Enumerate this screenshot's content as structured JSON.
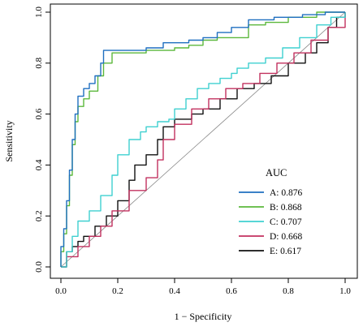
{
  "chart_data": {
    "type": "line",
    "xlabel": "1 − Specificity",
    "ylabel": "Sensitivity",
    "xlim": [
      0,
      1
    ],
    "ylim": [
      0,
      1
    ],
    "x_ticks": [
      "0.0",
      "0.2",
      "0.4",
      "0.6",
      "0.8",
      "1.0"
    ],
    "y_ticks": [
      "0.0",
      "0.2",
      "0.4",
      "0.6",
      "0.8",
      "1.0"
    ],
    "grid": false,
    "diagonal_reference": true,
    "legend": {
      "title": "AUC",
      "placement": "bottom-right"
    },
    "series": [
      {
        "name": "A",
        "auc_label": "A: 0.876",
        "color": "#1f6fc0",
        "points": [
          [
            0,
            0
          ],
          [
            0,
            0.08
          ],
          [
            0.01,
            0.15
          ],
          [
            0.02,
            0.26
          ],
          [
            0.03,
            0.38
          ],
          [
            0.04,
            0.5
          ],
          [
            0.05,
            0.6
          ],
          [
            0.06,
            0.67
          ],
          [
            0.08,
            0.7
          ],
          [
            0.1,
            0.72
          ],
          [
            0.12,
            0.75
          ],
          [
            0.14,
            0.8
          ],
          [
            0.15,
            0.85
          ],
          [
            0.22,
            0.85
          ],
          [
            0.3,
            0.86
          ],
          [
            0.36,
            0.88
          ],
          [
            0.45,
            0.89
          ],
          [
            0.5,
            0.9
          ],
          [
            0.55,
            0.92
          ],
          [
            0.6,
            0.94
          ],
          [
            0.66,
            0.97
          ],
          [
            0.75,
            0.98
          ],
          [
            0.85,
            0.99
          ],
          [
            0.93,
            1.0
          ],
          [
            1,
            1
          ]
        ]
      },
      {
        "name": "B",
        "auc_label": "B: 0.868",
        "color": "#5cb83c",
        "points": [
          [
            0,
            0
          ],
          [
            0,
            0.06
          ],
          [
            0.01,
            0.13
          ],
          [
            0.02,
            0.24
          ],
          [
            0.03,
            0.36
          ],
          [
            0.04,
            0.48
          ],
          [
            0.05,
            0.57
          ],
          [
            0.06,
            0.63
          ],
          [
            0.08,
            0.66
          ],
          [
            0.1,
            0.69
          ],
          [
            0.13,
            0.75
          ],
          [
            0.15,
            0.8
          ],
          [
            0.18,
            0.84
          ],
          [
            0.22,
            0.84
          ],
          [
            0.3,
            0.85
          ],
          [
            0.4,
            0.86
          ],
          [
            0.45,
            0.87
          ],
          [
            0.5,
            0.89
          ],
          [
            0.55,
            0.9
          ],
          [
            0.6,
            0.9
          ],
          [
            0.66,
            0.95
          ],
          [
            0.72,
            0.96
          ],
          [
            0.8,
            0.98
          ],
          [
            0.9,
            1.0
          ],
          [
            1,
            1
          ]
        ]
      },
      {
        "name": "C",
        "auc_label": "C: 0.707",
        "color": "#3fd0d0",
        "points": [
          [
            0,
            0
          ],
          [
            0.02,
            0.06
          ],
          [
            0.04,
            0.12
          ],
          [
            0.06,
            0.18
          ],
          [
            0.1,
            0.22
          ],
          [
            0.14,
            0.28
          ],
          [
            0.18,
            0.36
          ],
          [
            0.2,
            0.44
          ],
          [
            0.24,
            0.5
          ],
          [
            0.28,
            0.53
          ],
          [
            0.3,
            0.55
          ],
          [
            0.34,
            0.57
          ],
          [
            0.38,
            0.58
          ],
          [
            0.4,
            0.62
          ],
          [
            0.44,
            0.66
          ],
          [
            0.48,
            0.7
          ],
          [
            0.52,
            0.72
          ],
          [
            0.56,
            0.74
          ],
          [
            0.6,
            0.76
          ],
          [
            0.62,
            0.78
          ],
          [
            0.66,
            0.8
          ],
          [
            0.72,
            0.82
          ],
          [
            0.78,
            0.86
          ],
          [
            0.84,
            0.9
          ],
          [
            0.9,
            0.95
          ],
          [
            0.95,
            0.98
          ],
          [
            1,
            1
          ]
        ]
      },
      {
        "name": "D",
        "auc_label": "D: 0.668",
        "color": "#c2315f",
        "points": [
          [
            0,
            0
          ],
          [
            0.02,
            0.04
          ],
          [
            0.06,
            0.08
          ],
          [
            0.1,
            0.12
          ],
          [
            0.14,
            0.16
          ],
          [
            0.18,
            0.22
          ],
          [
            0.24,
            0.3
          ],
          [
            0.3,
            0.35
          ],
          [
            0.34,
            0.42
          ],
          [
            0.36,
            0.5
          ],
          [
            0.4,
            0.56
          ],
          [
            0.46,
            0.62
          ],
          [
            0.52,
            0.66
          ],
          [
            0.58,
            0.7
          ],
          [
            0.64,
            0.72
          ],
          [
            0.7,
            0.76
          ],
          [
            0.76,
            0.8
          ],
          [
            0.82,
            0.84
          ],
          [
            0.88,
            0.89
          ],
          [
            0.94,
            0.94
          ],
          [
            1,
            1
          ]
        ]
      },
      {
        "name": "E",
        "auc_label": "E: 0.617",
        "color": "#111111",
        "points": [
          [
            0,
            0
          ],
          [
            0.02,
            0.06
          ],
          [
            0.04,
            0.08
          ],
          [
            0.06,
            0.1
          ],
          [
            0.08,
            0.12
          ],
          [
            0.12,
            0.16
          ],
          [
            0.16,
            0.2
          ],
          [
            0.2,
            0.26
          ],
          [
            0.24,
            0.34
          ],
          [
            0.26,
            0.4
          ],
          [
            0.3,
            0.44
          ],
          [
            0.34,
            0.5
          ],
          [
            0.36,
            0.55
          ],
          [
            0.4,
            0.58
          ],
          [
            0.46,
            0.6
          ],
          [
            0.5,
            0.62
          ],
          [
            0.56,
            0.66
          ],
          [
            0.62,
            0.7
          ],
          [
            0.68,
            0.72
          ],
          [
            0.74,
            0.75
          ],
          [
            0.8,
            0.8
          ],
          [
            0.86,
            0.84
          ],
          [
            0.9,
            0.88
          ],
          [
            0.94,
            0.94
          ],
          [
            0.97,
            0.98
          ],
          [
            1,
            1
          ]
        ]
      }
    ]
  }
}
